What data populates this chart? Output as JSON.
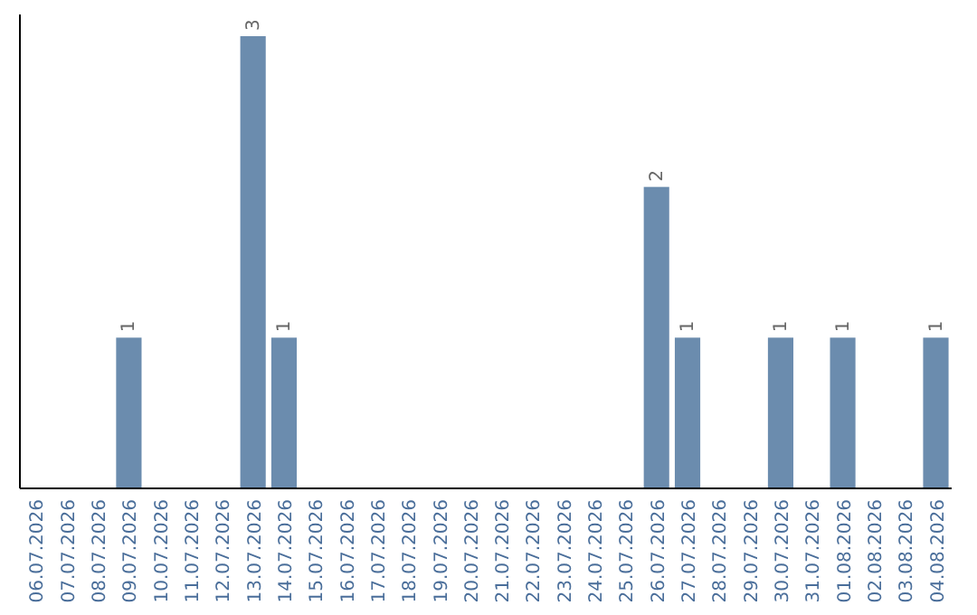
{
  "chart_data": {
    "type": "bar",
    "categories": [
      "06.07.2026",
      "07.07.2026",
      "08.07.2026",
      "09.07.2026",
      "10.07.2026",
      "11.07.2026",
      "12.07.2026",
      "13.07.2026",
      "14.07.2026",
      "15.07.2026",
      "16.07.2026",
      "17.07.2026",
      "18.07.2026",
      "19.07.2026",
      "20.07.2026",
      "21.07.2026",
      "22.07.2026",
      "23.07.2026",
      "24.07.2026",
      "25.07.2026",
      "26.07.2026",
      "27.07.2026",
      "28.07.2026",
      "29.07.2026",
      "30.07.2026",
      "31.07.2026",
      "01.08.2026",
      "02.08.2026",
      "03.08.2026",
      "04.08.2026"
    ],
    "values": [
      0,
      0,
      0,
      1,
      0,
      0,
      0,
      3,
      1,
      0,
      0,
      0,
      0,
      0,
      0,
      0,
      0,
      0,
      0,
      0,
      2,
      1,
      0,
      0,
      1,
      0,
      1,
      0,
      0,
      1
    ],
    "value_labels": [
      null,
      null,
      null,
      "1",
      null,
      null,
      null,
      "3",
      "1",
      null,
      null,
      null,
      null,
      null,
      null,
      null,
      null,
      null,
      null,
      null,
      "2",
      "1",
      null,
      null,
      "1",
      null,
      "1",
      null,
      null,
      "1"
    ],
    "color": "#6b8cae",
    "ylim": [
      0,
      3
    ],
    "tick_labels": "x"
  }
}
